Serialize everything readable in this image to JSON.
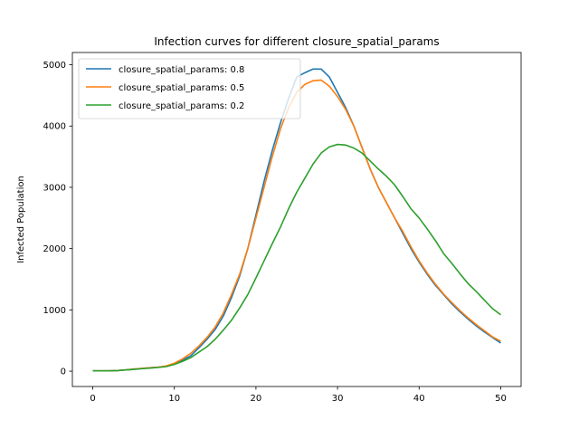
{
  "chart_data": {
    "type": "line",
    "title": "Infection curves for different closure_spatial_params",
    "xlabel": "",
    "ylabel": "Infected Population",
    "xlim": [
      -2.5,
      52.5
    ],
    "ylim": [
      -250,
      5200
    ],
    "x_ticks": [
      0,
      10,
      20,
      30,
      40,
      50
    ],
    "y_ticks": [
      0,
      1000,
      2000,
      3000,
      4000,
      5000
    ],
    "grid": false,
    "legend_position": "top-left",
    "x": [
      0,
      1,
      2,
      3,
      4,
      5,
      6,
      7,
      8,
      9,
      10,
      11,
      12,
      13,
      14,
      15,
      16,
      17,
      18,
      19,
      20,
      21,
      22,
      23,
      24,
      25,
      26,
      27,
      28,
      29,
      30,
      31,
      32,
      33,
      34,
      35,
      36,
      37,
      38,
      39,
      40,
      41,
      42,
      43,
      44,
      45,
      46,
      47,
      48,
      49,
      50
    ],
    "series": [
      {
        "name": "closure_spatial_params: 0.8",
        "color": "#1f77b4",
        "values": [
          5,
          5,
          5,
          10,
          20,
          30,
          45,
          55,
          65,
          80,
          120,
          180,
          250,
          380,
          520,
          680,
          900,
          1200,
          1550,
          2000,
          2550,
          3100,
          3600,
          4050,
          4450,
          4800,
          4870,
          4930,
          4930,
          4800,
          4550,
          4300,
          4000,
          3650,
          3300,
          3000,
          2750,
          2500,
          2250,
          2000,
          1780,
          1580,
          1400,
          1250,
          1100,
          970,
          850,
          740,
          640,
          550,
          460
        ]
      },
      {
        "name": "closure_spatial_params: 0.5",
        "color": "#ff7f0e",
        "values": [
          5,
          5,
          5,
          10,
          20,
          35,
          45,
          55,
          65,
          85,
          130,
          200,
          290,
          410,
          550,
          720,
          950,
          1250,
          1580,
          2000,
          2500,
          3000,
          3500,
          3950,
          4300,
          4550,
          4680,
          4740,
          4750,
          4650,
          4480,
          4270,
          4000,
          3650,
          3300,
          3000,
          2750,
          2500,
          2280,
          2030,
          1800,
          1600,
          1420,
          1260,
          1120,
          990,
          870,
          760,
          660,
          560,
          490
        ]
      },
      {
        "name": "closure_spatial_params: 0.2",
        "color": "#2ca02c",
        "values": [
          5,
          5,
          5,
          10,
          20,
          30,
          40,
          50,
          60,
          75,
          110,
          160,
          220,
          310,
          400,
          520,
          670,
          830,
          1030,
          1250,
          1520,
          1800,
          2080,
          2350,
          2650,
          2920,
          3150,
          3380,
          3560,
          3660,
          3700,
          3690,
          3640,
          3560,
          3430,
          3300,
          3180,
          3040,
          2850,
          2650,
          2500,
          2320,
          2130,
          1920,
          1760,
          1590,
          1430,
          1300,
          1160,
          1020,
          920
        ]
      }
    ]
  }
}
